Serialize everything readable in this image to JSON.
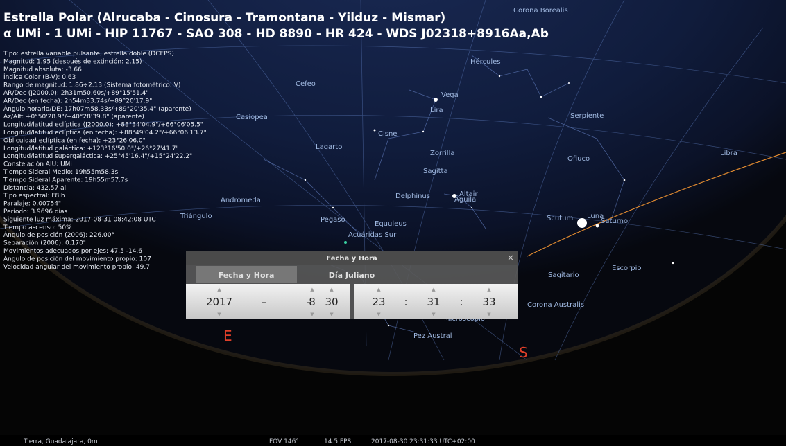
{
  "header": {
    "title": "Estrella Polar (Alrucaba - Cinosura - Tramontana - Yilduz - Mismar)",
    "subtitle": "α UMi - 1 UMi - HIP 11767 - SAO 308 - HD 8890 - HR 424 - WDS J02318+8916Aa,Ab"
  },
  "info": [
    "Tipo: estrella variable pulsante, estrella doble (DCEPS)",
    "Magnitud: 1.95 (después de extinción: 2.15)",
    "Magnitud absoluta: -3.66",
    "Índice Color (B-V): 0.63",
    "Rango de magnitud: 1.86÷2.13 (Sistema fotométrico: V)",
    "AR/Dec (J2000.0): 2h31m50.60s/+89°15'51.4\"",
    "AR/Dec (en fecha): 2h54m33.74s/+89°20'17.9\"",
    "Ángulo horario/DE: 17h07m58.33s/+89°20'35.4\" (aparente)",
    "Az/Alt: +0°50'28.9\"/+40°28'39.8\" (aparente)",
    "Longitud/latitud eclíptica (J2000.0): +88°34'04.9\"/+66°06'05.5\"",
    "Longitud/latitud eclíptica (en fecha): +88°49'04.2\"/+66°06'13.7\"",
    "Oblicuidad eclíptica (en fecha): +23°26'06.0\"",
    "Longitud/latitud galáctica: +123°16'50.0\"/+26°27'41.7\"",
    "Longitud/latitud supergaláctica: +25°45'16.4\"/+15°24'22.2\"",
    "Constelación AIU: UMi",
    "Tiempo Sideral Medio: 19h55m58.3s",
    "Tiempo Sideral Aparente: 19h55m57.7s",
    "Distancia: 432.57 al",
    "Tipo espectral: F8Ib",
    "Paralaje: 0.00754\"",
    "Período: 3.9696 días",
    "Siguiente luz máxima: 2017-08-31 08:42:08 UTC",
    "Tiempo ascenso: 50%",
    "Ángulo de posición (2006): 226.00°",
    "Separación (2006): 0.170\"",
    "Movimientos adecuados por ejes: 47.5 -14.6",
    "Ángulo de posición del movimiento propio: 107",
    "Velocidad angular del movimiento propio: 49.7"
  ],
  "sky_labels": [
    "Corona Borealis",
    "Hércules",
    "Vega",
    "Lira",
    "Serpiente",
    "Cefeo",
    "Cisne",
    "Casiopea",
    "Lagarto",
    "Zorrilla",
    "Ofiuco",
    "Libra",
    "Sagitta",
    "Andrómeda",
    "Delphinus",
    "Altair",
    "Águila",
    "Triángulo",
    "Pegaso",
    "Equuleus",
    "Scutum",
    "Luna",
    "Saturno",
    "Acuáridas Sur",
    "Escorpio",
    "Sagitario",
    "Corona Australis",
    "Microscopio",
    "Pez Austral"
  ],
  "compass": [
    "E",
    "S"
  ],
  "dialog": {
    "title": "Fecha y Hora",
    "tabs": [
      "Fecha y Hora",
      "Día Juliano"
    ],
    "date": [
      2017,
      8,
      30
    ],
    "time": [
      23,
      31,
      33
    ],
    "date_separator": "–",
    "time_separator": ":"
  },
  "status": {
    "location": "Tierra, Guadalajara, 0m",
    "fov": "FOV 146°",
    "fps": "14.5 FPS",
    "datetime": "2017-08-30 23:31:33 UTC+02:00"
  }
}
